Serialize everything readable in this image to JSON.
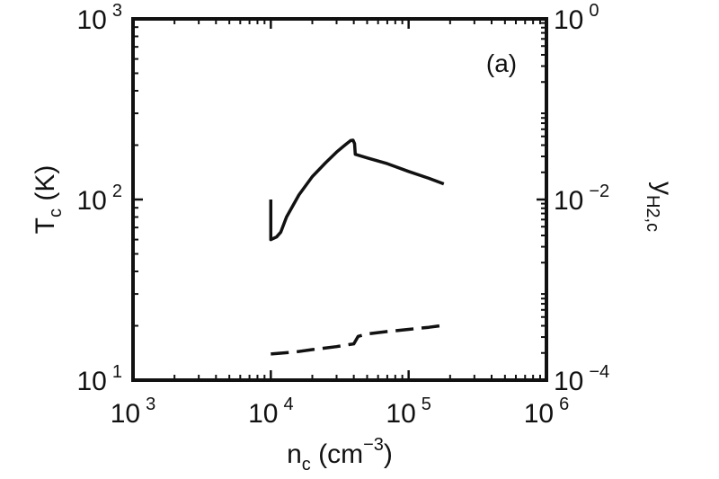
{
  "chart_data": {
    "type": "line",
    "panel_label": "(a)",
    "x_axis": {
      "label_main": "n",
      "label_sub": "c",
      "label_unit_open": " (cm",
      "label_unit_exp": "−3",
      "label_unit_close": ")",
      "scale": "log",
      "range": [
        1000,
        1000000
      ],
      "ticks": [
        {
          "value": 1000,
          "base": "10",
          "exp": "3"
        },
        {
          "value": 10000,
          "base": "10",
          "exp": "4"
        },
        {
          "value": 100000,
          "base": "10",
          "exp": "5"
        },
        {
          "value": 1000000,
          "base": "10",
          "exp": "6"
        }
      ]
    },
    "y_left": {
      "label_main": "T",
      "label_sub": "c",
      "label_unit": " (K)",
      "scale": "log",
      "range": [
        10,
        1000
      ],
      "ticks": [
        {
          "value": 10,
          "base": "10",
          "exp": "1"
        },
        {
          "value": 100,
          "base": "10",
          "exp": "2"
        },
        {
          "value": 1000,
          "base": "10",
          "exp": "3"
        }
      ]
    },
    "y_right": {
      "label_main": "y",
      "label_sub": "H2,c",
      "scale": "log",
      "range": [
        0.0001,
        1
      ],
      "ticks": [
        {
          "value": 0.0001,
          "base": "10",
          "exp": "−4"
        },
        {
          "value": 0.01,
          "base": "10",
          "exp": "−2"
        },
        {
          "value": 1,
          "base": "10",
          "exp": "0"
        }
      ]
    },
    "series": [
      {
        "axis": "left",
        "style": "solid",
        "points": [
          [
            10000,
            100
          ],
          [
            10000,
            60
          ],
          [
            11000,
            62
          ],
          [
            11800,
            66
          ],
          [
            13000,
            80
          ],
          [
            16000,
            106
          ],
          [
            20000,
            134
          ],
          [
            25000,
            160
          ],
          [
            30000,
            183
          ],
          [
            35000,
            202
          ],
          [
            38000,
            212
          ],
          [
            39500,
            213
          ],
          [
            40500,
            204
          ],
          [
            41000,
            178
          ],
          [
            50000,
            170
          ],
          [
            70000,
            158
          ],
          [
            100000,
            143
          ],
          [
            140000,
            131
          ],
          [
            180000,
            122
          ]
        ]
      },
      {
        "axis": "right",
        "style": "dashed",
        "points": [
          [
            10000,
            0.000195
          ],
          [
            15000,
            0.000205
          ],
          [
            20000,
            0.000218
          ],
          [
            30000,
            0.000235
          ],
          [
            37000,
            0.000248
          ],
          [
            40000,
            0.000252
          ],
          [
            43000,
            0.000305
          ],
          [
            50000,
            0.000325
          ],
          [
            70000,
            0.000345
          ],
          [
            100000,
            0.000365
          ],
          [
            140000,
            0.000385
          ],
          [
            180000,
            0.000405
          ]
        ]
      }
    ]
  }
}
